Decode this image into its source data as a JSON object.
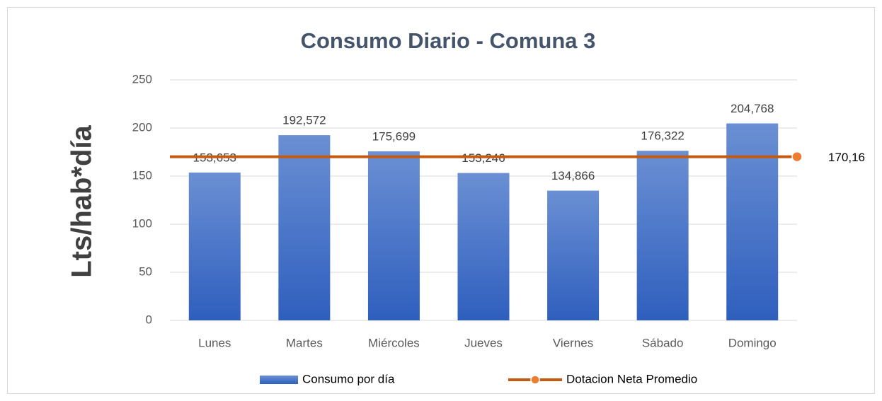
{
  "chart_data": {
    "type": "bar",
    "title": "Consumo Diario - Comuna 3",
    "y_label": "Lts/hab*día",
    "categories": [
      "Lunes",
      "Martes",
      "Miércoles",
      "Jueves",
      "Viernes",
      "Sábado",
      "Domingo"
    ],
    "series": [
      {
        "name": "Consumo por día",
        "color": "#4472c4",
        "values": [
          153.653,
          192.572,
          175.699,
          153.246,
          134.866,
          176.322,
          204.768
        ],
        "value_labels": [
          "153,653",
          "192,572",
          "175,699",
          "153,246",
          "134,866",
          "176,322",
          "204,768"
        ]
      }
    ],
    "reference_line": {
      "name": "Dotacion Neta Promedio",
      "color": "#c55a11",
      "marker_color": "#ed7d31",
      "value": 170.16,
      "value_label": "170,16"
    },
    "ylim": [
      0,
      250
    ],
    "yticks": [
      0,
      50,
      100,
      150,
      200,
      250
    ],
    "grid": true,
    "legend": "bottom"
  }
}
